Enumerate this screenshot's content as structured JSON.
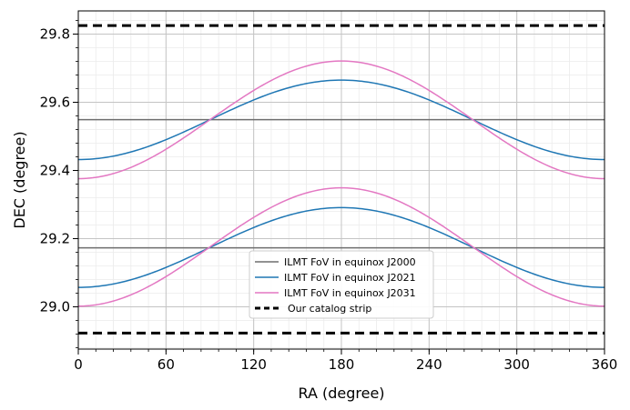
{
  "chart_data": {
    "type": "line",
    "xlabel": "RA (degree)",
    "ylabel": "DEC (degree)",
    "xlim": [
      0,
      360
    ],
    "ylim": [
      28.876,
      29.868
    ],
    "xticks": [
      0,
      60,
      120,
      180,
      240,
      300,
      360
    ],
    "yticks": [
      29.0,
      29.2,
      29.4,
      29.6,
      29.8
    ],
    "xtick_labels": [
      "0",
      "60",
      "120",
      "180",
      "240",
      "300",
      "360"
    ],
    "ytick_labels": [
      "29.0",
      "29.2",
      "29.4",
      "29.6",
      "29.8"
    ],
    "x_minor_step": 12,
    "y_minor_step": 0.04,
    "grid": true,
    "legend_position": "bottom-center",
    "series": [
      {
        "name": "ILMT FoV in equinox J2000",
        "color": "#6e6e6e",
        "style": "solid",
        "kind": "constant",
        "bands": [
          29.173,
          29.549
        ]
      },
      {
        "name": "ILMT FoV in equinox J2021",
        "color": "#1f77b4",
        "style": "solid",
        "kind": "cosine",
        "bands": [
          {
            "at_0": 29.057,
            "at_180": 29.291
          },
          {
            "at_0": 29.432,
            "at_180": 29.665
          }
        ]
      },
      {
        "name": "ILMT FoV in equinox J2031",
        "color": "#e377c2",
        "style": "solid",
        "kind": "cosine",
        "bands": [
          {
            "at_0": 29.002,
            "at_180": 29.349
          },
          {
            "at_0": 29.376,
            "at_180": 29.721
          }
        ]
      },
      {
        "name": "Our catalog strip",
        "color": "#000000",
        "style": "dashed",
        "kind": "constant",
        "bands": [
          28.923,
          29.825
        ]
      }
    ]
  }
}
